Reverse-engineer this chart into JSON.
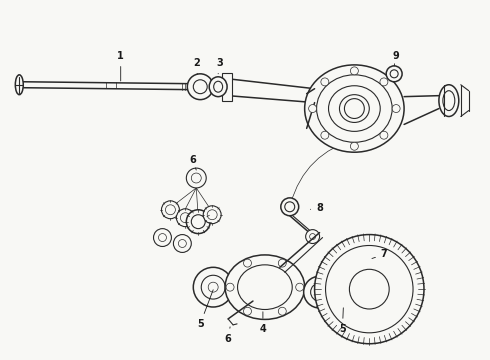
{
  "bg_color": "#f8f8f5",
  "fig_width": 4.9,
  "fig_height": 3.6,
  "dpi": 100,
  "lc": "#2a2a2a",
  "lw_hair": 0.5,
  "lw_thin": 0.8,
  "lw_med": 1.1,
  "lw_thick": 1.5,
  "label_fs": 7,
  "label_fw": "bold",
  "label_color": "#1a1a1a"
}
